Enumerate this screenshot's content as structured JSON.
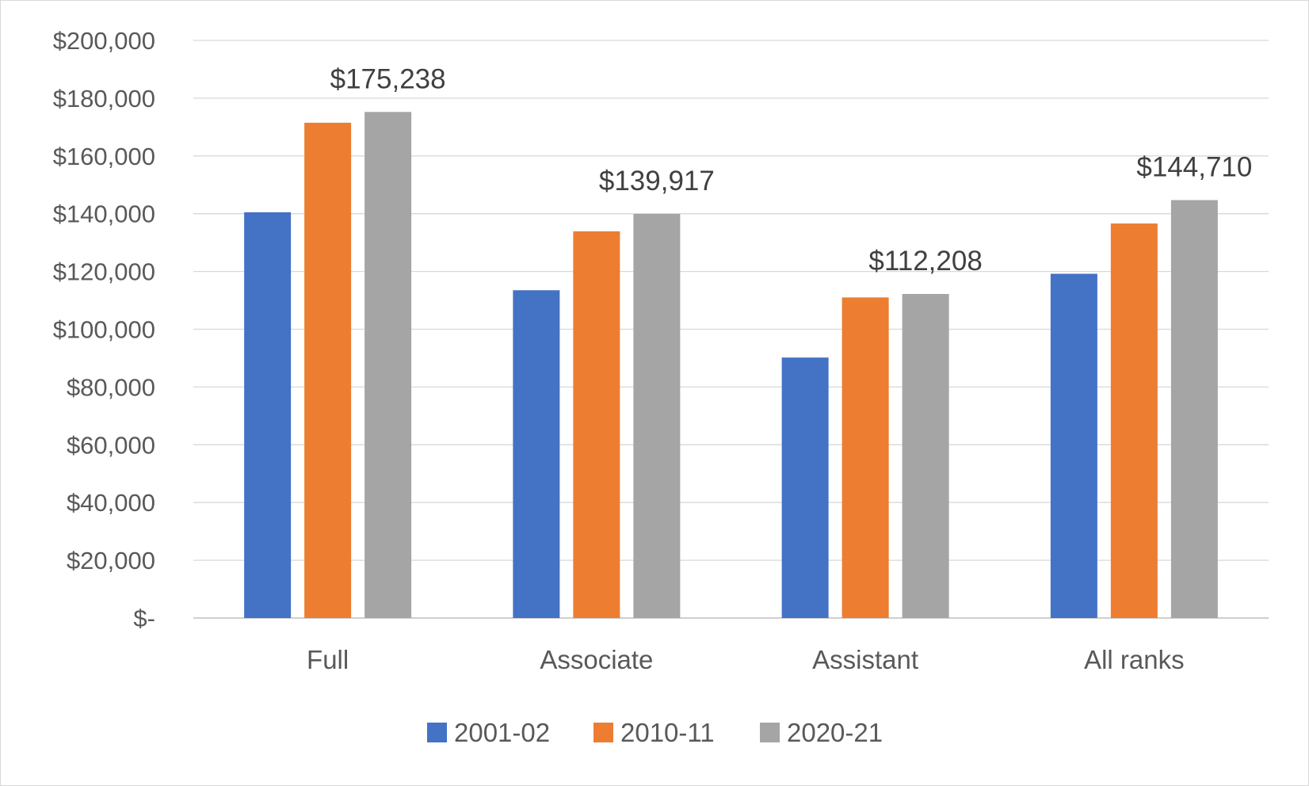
{
  "chart_data": {
    "type": "bar",
    "title": "",
    "xlabel": "",
    "ylabel": "",
    "categories": [
      "Full",
      "Associate",
      "Assistant",
      "All ranks"
    ],
    "series": [
      {
        "name": "2001-02",
        "color": "#4472c4",
        "values": [
          140500,
          113500,
          90200,
          119200
        ]
      },
      {
        "name": "2010-11",
        "color": "#ed7d31",
        "values": [
          171500,
          133900,
          111000,
          136600
        ]
      },
      {
        "name": "2020-21",
        "color": "#a5a5a5",
        "values": [
          175238,
          139917,
          112208,
          144710
        ]
      }
    ],
    "data_labels": [
      {
        "category": "Full",
        "series": "2020-21",
        "text": "$175,238"
      },
      {
        "category": "Associate",
        "series": "2020-21",
        "text": "$139,917"
      },
      {
        "category": "Assistant",
        "series": "2020-21",
        "text": "$112,208"
      },
      {
        "category": "All ranks",
        "series": "2020-21",
        "text": "$144,710"
      }
    ],
    "y_ticks": [
      {
        "value": 200000,
        "label": "$200,000"
      },
      {
        "value": 180000,
        "label": "$180,000"
      },
      {
        "value": 160000,
        "label": "$160,000"
      },
      {
        "value": 140000,
        "label": "$140,000"
      },
      {
        "value": 120000,
        "label": "$120,000"
      },
      {
        "value": 100000,
        "label": "$100,000"
      },
      {
        "value": 80000,
        "label": "$80,000"
      },
      {
        "value": 60000,
        "label": "$60,000"
      },
      {
        "value": 40000,
        "label": "$40,000"
      },
      {
        "value": 20000,
        "label": "$20,000"
      },
      {
        "value": 0,
        "label": "$-"
      }
    ],
    "ylim": [
      0,
      200000
    ],
    "grid": true,
    "legend_position": "bottom"
  }
}
